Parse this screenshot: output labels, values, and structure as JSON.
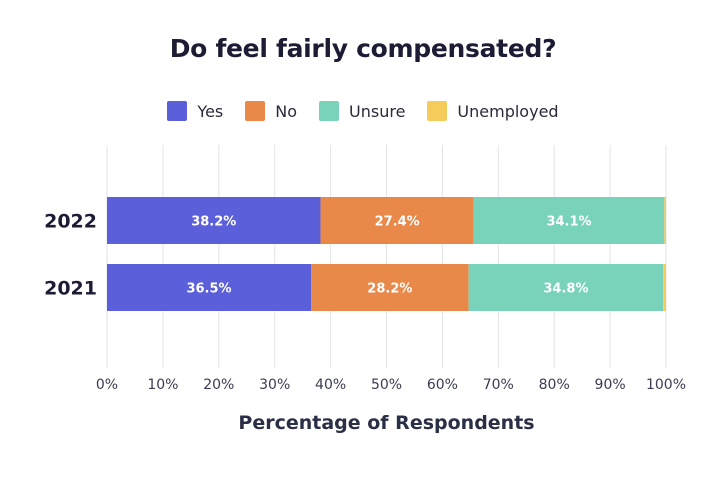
{
  "chart_data": {
    "type": "bar",
    "orientation": "horizontal",
    "stacked": true,
    "title": "Do feel fairly compensated?",
    "xlabel": "Percentage of Respondents",
    "ylabel": "",
    "xlim": [
      0,
      100
    ],
    "xticks": [
      "0%",
      "10%",
      "20%",
      "30%",
      "40%",
      "50%",
      "60%",
      "70%",
      "80%",
      "90%",
      "100%"
    ],
    "categories": [
      "2022",
      "2021"
    ],
    "series": [
      {
        "name": "Yes",
        "color": "#5B5FD9",
        "values": [
          38.2,
          36.5
        ],
        "labels": [
          "38.2%",
          "36.5%"
        ]
      },
      {
        "name": "No",
        "color": "#E8894A",
        "values": [
          27.4,
          28.2
        ],
        "labels": [
          "27.4%",
          "28.2%"
        ]
      },
      {
        "name": "Unsure",
        "color": "#79D3BA",
        "values": [
          34.1,
          34.8
        ],
        "labels": [
          "34.1%",
          "34.8%"
        ]
      },
      {
        "name": "Unemployed",
        "color": "#F5CC5A",
        "values": [
          0.3,
          0.5
        ],
        "labels": [
          "",
          ""
        ]
      }
    ],
    "grid": true,
    "legend": "top-center"
  }
}
